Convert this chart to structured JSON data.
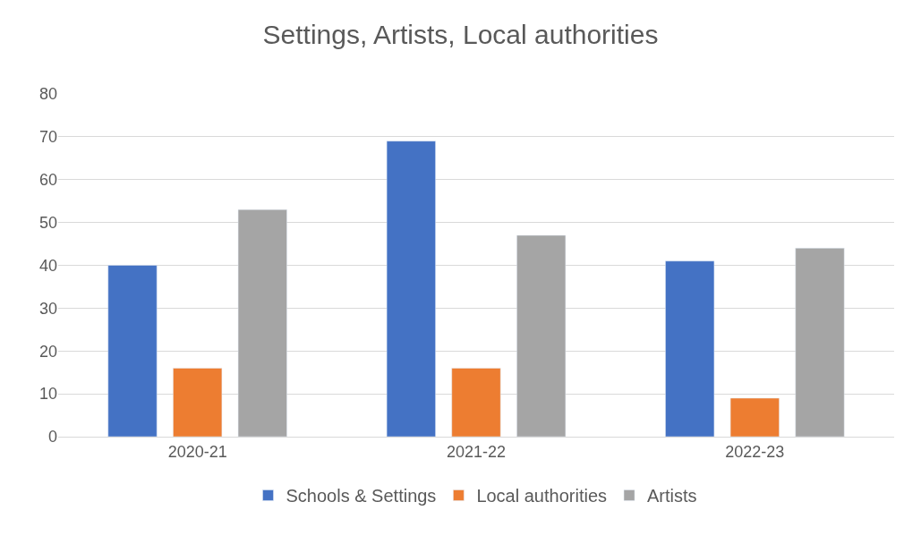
{
  "chart_data": {
    "type": "bar",
    "title": "Settings, Artists, Local authorities",
    "categories": [
      "2020-21",
      "2021-22",
      "2022-23"
    ],
    "series": [
      {
        "name": "Schools & Settings",
        "color": "#4472c4",
        "values": [
          40,
          69,
          41
        ]
      },
      {
        "name": "Local authorities",
        "color": "#ed7d31",
        "values": [
          16,
          16,
          9
        ]
      },
      {
        "name": "Artists",
        "color": "#a5a5a5",
        "values": [
          53,
          47,
          44
        ]
      }
    ],
    "ylim": [
      0,
      80
    ],
    "yticks": [
      0,
      10,
      20,
      30,
      40,
      50,
      60,
      70,
      80
    ],
    "grid": "y",
    "legend": "bottom"
  }
}
